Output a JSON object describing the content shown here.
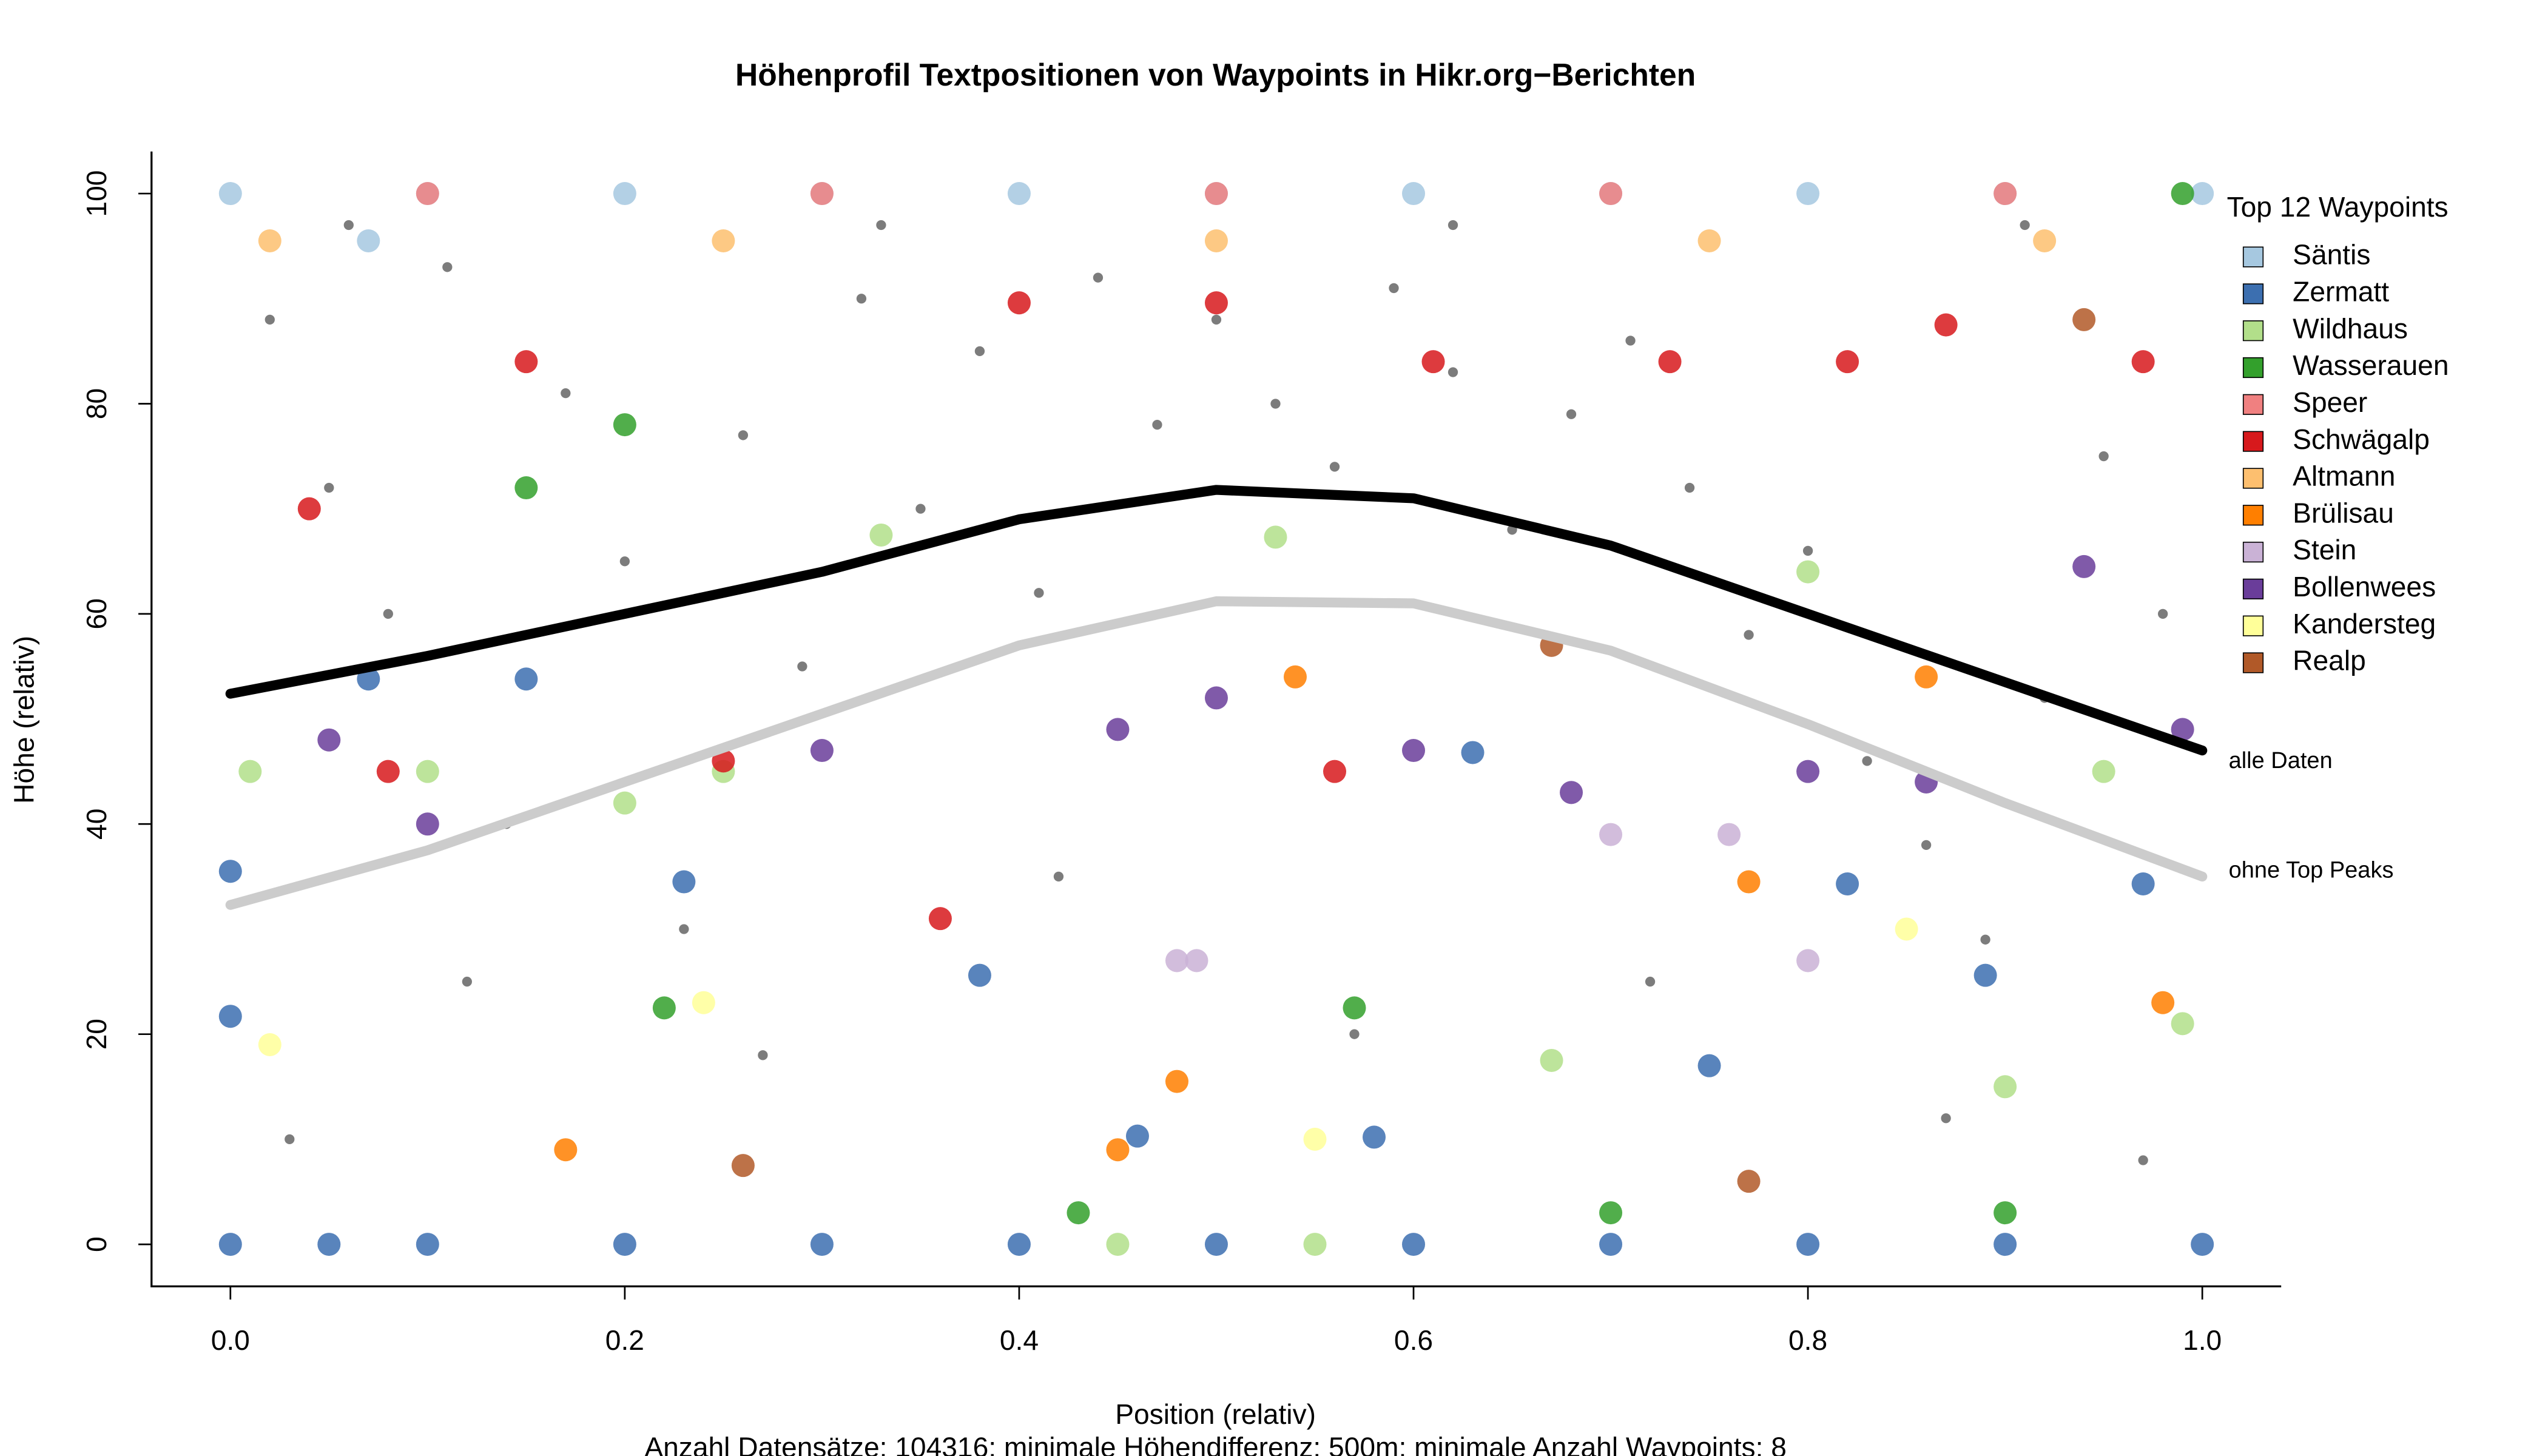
{
  "chart_data": {
    "type": "scatter",
    "title": "Höhenprofil Textpositionen von Waypoints in Hikr.org−Berichten",
    "x_label": "Position (relativ)",
    "y_label": "Höhe (relativ)",
    "note": "Anzahl Datensätze: 104316; minimale Höhendifferenz: 500m; minimale Anzahl Waypoints: 8",
    "legend_title": "Top 12 Waypoints",
    "legend": "right",
    "grid": false,
    "xlim": [
      -0.04,
      1.04
    ],
    "ylim": [
      -4,
      104
    ],
    "xticks": [
      {
        "value": 0,
        "label": "0.0"
      },
      0.2,
      0.4,
      0.6,
      0.8,
      {
        "value": 1,
        "label": "1.0"
      }
    ],
    "yticks": [
      0,
      20,
      40,
      60,
      80,
      100
    ],
    "series": [
      {
        "color": "#6e6e6e",
        "x": [
          0.02,
          0.05,
          0.08,
          0.11,
          0.14,
          0.17,
          0.2,
          0.23,
          0.26,
          0.29,
          0.32,
          0.35,
          0.38,
          0.41,
          0.44,
          0.47,
          0.5,
          0.53,
          0.56,
          0.59,
          0.62,
          0.65,
          0.68,
          0.71,
          0.74,
          0.77,
          0.8,
          0.83,
          0.86,
          0.89,
          0.92,
          0.95,
          0.98,
          0.03,
          0.12,
          0.27,
          0.42,
          0.57,
          0.72,
          0.87,
          0.97,
          0.06,
          0.33,
          0.62,
          0.91
        ],
        "values": [
          88,
          72,
          60,
          93,
          40,
          81,
          65,
          30,
          77,
          55,
          90,
          70,
          85,
          62,
          92,
          78,
          88,
          80,
          74,
          91,
          83,
          68,
          79,
          86,
          72,
          58,
          66,
          46,
          38,
          29,
          52,
          75,
          60,
          10,
          25,
          18,
          35,
          20,
          25,
          12,
          8,
          97,
          97,
          97,
          97
        ]
      },
      {
        "name": "Säntis",
        "color": "#a6c8e0",
        "x": [
          0,
          0.1,
          0.2,
          0.3,
          0.4,
          0.5,
          0.6,
          0.7,
          0.8,
          0.9,
          1.0,
          0.07
        ],
        "values": [
          100,
          100,
          100,
          100,
          100,
          100,
          100,
          100,
          100,
          100,
          100,
          95.5
        ]
      },
      {
        "name": "Zermatt",
        "color": "#3c6fb0",
        "x": [
          0,
          0.05,
          0.1,
          0.2,
          0.3,
          0.4,
          0.5,
          0.6,
          0.7,
          0.8,
          0.9,
          1.0,
          0.0,
          0.0,
          0.07,
          0.15,
          0.23,
          0.38,
          0.46,
          0.58,
          0.63,
          0.75,
          0.82,
          0.89,
          0.97
        ],
        "values": [
          0,
          0,
          0,
          0,
          0,
          0,
          0,
          0,
          0,
          0,
          0,
          0,
          35.5,
          21.7,
          53.8,
          53.8,
          34.5,
          25.6,
          10.3,
          10.2,
          46.8,
          17,
          34.3,
          25.6,
          34.3
        ]
      },
      {
        "name": "Wildhaus",
        "color": "#b2df8a",
        "x": [
          0.01,
          0.1,
          0.2,
          0.25,
          0.33,
          0.53,
          0.67,
          0.8,
          0.9,
          0.95,
          0.99,
          0.45,
          0.55
        ],
        "values": [
          45,
          45,
          42,
          45,
          67.5,
          67.3,
          17.5,
          64,
          15,
          45,
          21,
          0,
          0
        ]
      },
      {
        "name": "Wasserauen",
        "color": "#33a02c",
        "x": [
          0.2,
          0.15,
          0.22,
          0.57,
          0.43,
          0.7,
          0.99,
          0.9
        ],
        "values": [
          78,
          72,
          22.5,
          22.5,
          3,
          3,
          100,
          3
        ]
      },
      {
        "name": "Speer",
        "color": "#f08080",
        "x": [
          0.1,
          0.3,
          0.5,
          0.7,
          0.9
        ],
        "values": [
          100,
          100,
          100,
          100,
          100
        ]
      },
      {
        "name": "Schwägalp",
        "color": "#d7191c",
        "x": [
          0.04,
          0.15,
          0.4,
          0.5,
          0.61,
          0.73,
          0.82,
          0.87,
          0.97,
          0.36,
          0.56,
          0.08,
          0.25
        ],
        "values": [
          70,
          84,
          89.6,
          89.6,
          84,
          84,
          84,
          87.5,
          84,
          31,
          45,
          45,
          46
        ]
      },
      {
        "name": "Altmann",
        "color": "#fdbf6f",
        "x": [
          0.02,
          0.25,
          0.5,
          0.75,
          0.92
        ],
        "values": [
          95.5,
          95.5,
          95.5,
          95.5,
          95.5
        ]
      },
      {
        "name": "Brülisau",
        "color": "#ff7f00",
        "x": [
          0.17,
          0.45,
          0.48,
          0.54,
          0.77,
          0.86,
          0.98
        ],
        "values": [
          9,
          9,
          15.5,
          54,
          34.5,
          54,
          23
        ]
      },
      {
        "name": "Stein",
        "color": "#cab2d6",
        "x": [
          0.48,
          0.49,
          0.7,
          0.76,
          0.8
        ],
        "values": [
          27,
          27,
          39,
          39,
          27
        ]
      },
      {
        "name": "Bollenwees",
        "color": "#6a3d9a",
        "x": [
          0.05,
          0.1,
          0.3,
          0.45,
          0.5,
          0.6,
          0.68,
          0.8,
          0.86,
          0.94,
          0.99
        ],
        "values": [
          48,
          40,
          47,
          49,
          52,
          47,
          43,
          45,
          44,
          64.5,
          49
        ]
      },
      {
        "name": "Kandersteg",
        "color": "#ffff99",
        "x": [
          0.02,
          0.24,
          0.55,
          0.85
        ],
        "values": [
          19,
          23,
          10,
          30
        ]
      },
      {
        "name": "Realp",
        "color": "#b15928",
        "x": [
          0.26,
          0.94,
          0.77,
          0.67
        ],
        "values": [
          7.5,
          88,
          6,
          57
        ]
      }
    ],
    "lines": [
      {
        "name": "alle Daten",
        "color": "#000000",
        "x": [
          0,
          0.1,
          0.2,
          0.3,
          0.4,
          0.5,
          0.6,
          0.7,
          0.8,
          0.9,
          1.0
        ],
        "values": [
          52.4,
          56,
          60,
          64,
          69,
          71.8,
          71,
          66.5,
          60,
          53.5,
          47
        ]
      },
      {
        "name": "ohne Top Peaks",
        "color": "#cccccc",
        "x": [
          0,
          0.1,
          0.2,
          0.3,
          0.4,
          0.5,
          0.6,
          0.7,
          0.8,
          0.9,
          1.0
        ],
        "values": [
          32.3,
          37.5,
          44,
          50.5,
          57,
          61.2,
          61,
          56.5,
          49.5,
          42,
          35
        ]
      }
    ]
  }
}
